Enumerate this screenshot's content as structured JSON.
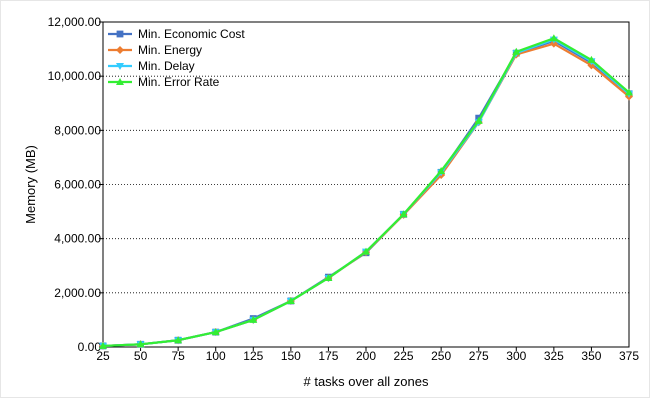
{
  "chart_data": {
    "type": "line",
    "title": "",
    "xlabel": "# tasks over all zones",
    "ylabel": "Memory (MB)",
    "x": [
      25,
      50,
      75,
      100,
      125,
      150,
      175,
      200,
      225,
      250,
      275,
      300,
      325,
      350,
      375
    ],
    "ylim": [
      0,
      12000
    ],
    "yticks": [
      0,
      2000,
      4000,
      6000,
      8000,
      10000,
      12000
    ],
    "ytick_labels": [
      "0.00",
      "2,000.00",
      "4,000.00",
      "6,000.00",
      "8,000.00",
      "10,000.00",
      "12,000.00"
    ],
    "grid": "horizontal dotted",
    "legend_position": "top-left",
    "series": [
      {
        "name": "Min. Economic Cost",
        "color": "#4472c4",
        "marker": "square",
        "values": [
          40,
          100,
          250,
          550,
          1050,
          1700,
          2580,
          3480,
          4900,
          6450,
          8450,
          10850,
          11300,
          10500,
          9350
        ]
      },
      {
        "name": "Min. Energy",
        "color": "#ed7d31",
        "marker": "diamond",
        "values": [
          40,
          100,
          250,
          550,
          1000,
          1700,
          2550,
          3500,
          4880,
          6350,
          8300,
          10800,
          11200,
          10400,
          9250
        ]
      },
      {
        "name": "Min. Delay",
        "color": "#33ccff",
        "marker": "triangle-down",
        "values": [
          40,
          100,
          250,
          550,
          1000,
          1700,
          2550,
          3520,
          4900,
          6450,
          8300,
          10850,
          11350,
          10550,
          9350
        ]
      },
      {
        "name": "Min. Error Rate",
        "color": "#33ee33",
        "marker": "triangle-up",
        "values": [
          40,
          100,
          250,
          550,
          1000,
          1700,
          2550,
          3520,
          4900,
          6500,
          8350,
          10900,
          11400,
          10600,
          9400
        ]
      }
    ]
  }
}
